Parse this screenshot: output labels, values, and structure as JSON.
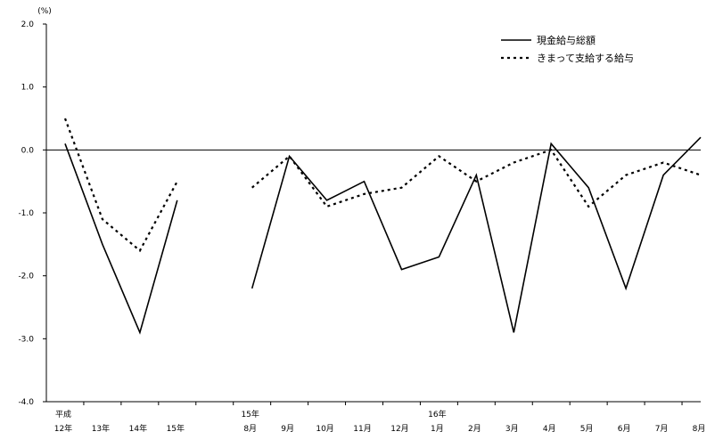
{
  "chart_data": {
    "type": "line",
    "unit_label": "(%)",
    "ylim": [
      -4.0,
      2.0
    ],
    "yticks": [
      2.0,
      1.0,
      0.0,
      -1.0,
      -2.0,
      -3.0,
      -4.0
    ],
    "ytick_labels": [
      "2.0",
      "1.0",
      "0.0",
      "-1.0",
      "-2.0",
      "-3.0",
      "-4.0"
    ],
    "categories": [
      {
        "top": "平成",
        "bottom": "12年"
      },
      {
        "top": "",
        "bottom": "13年"
      },
      {
        "top": "",
        "bottom": "14年"
      },
      {
        "top": "",
        "bottom": "15年"
      },
      {
        "top": "",
        "bottom": ""
      },
      {
        "top": "15年",
        "bottom": "8月"
      },
      {
        "top": "",
        "bottom": "9月"
      },
      {
        "top": "",
        "bottom": "10月"
      },
      {
        "top": "",
        "bottom": "11月"
      },
      {
        "top": "",
        "bottom": "12月"
      },
      {
        "top": "16年",
        "bottom": "1月"
      },
      {
        "top": "",
        "bottom": "2月"
      },
      {
        "top": "",
        "bottom": "3月"
      },
      {
        "top": "",
        "bottom": "4月"
      },
      {
        "top": "",
        "bottom": "5月"
      },
      {
        "top": "",
        "bottom": "6月"
      },
      {
        "top": "",
        "bottom": "7月"
      },
      {
        "top": "",
        "bottom": "8月"
      }
    ],
    "series": [
      {
        "name": "現金給与総額",
        "style": "solid",
        "color": "#000000",
        "values": [
          0.1,
          -1.5,
          -2.9,
          -0.8,
          null,
          -2.2,
          -0.1,
          -0.8,
          -0.5,
          -1.9,
          -1.7,
          -0.4,
          -2.9,
          0.1,
          -0.6,
          -2.2,
          -0.4,
          0.2
        ]
      },
      {
        "name": "きまって支給する給与",
        "style": "dotted",
        "color": "#000000",
        "values": [
          0.5,
          -1.1,
          -1.6,
          -0.5,
          null,
          -0.6,
          -0.1,
          -0.9,
          -0.7,
          -0.6,
          -0.1,
          -0.5,
          -0.2,
          0.0,
          -0.9,
          -0.4,
          -0.2,
          -0.4
        ]
      }
    ],
    "legend_position": "top-right",
    "grid": false
  }
}
